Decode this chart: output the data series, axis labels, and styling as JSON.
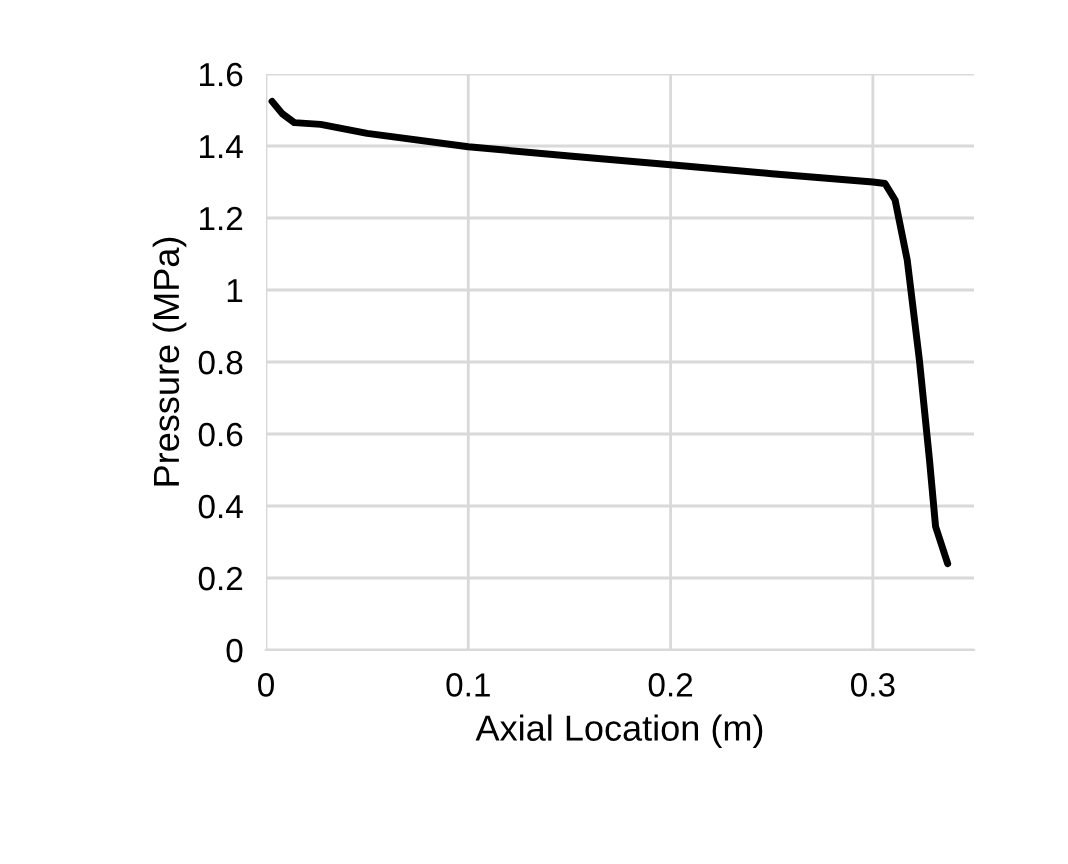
{
  "chart_data": {
    "type": "line",
    "xlabel": "Axial Location (m)",
    "ylabel": "Pressure (MPa)",
    "xlim": [
      0,
      0.35
    ],
    "xticks": [
      0,
      0.1,
      0.2,
      0.3
    ],
    "ylim": [
      0,
      1.6
    ],
    "yticks": [
      0,
      0.2,
      0.4,
      0.6,
      0.8,
      1,
      1.2,
      1.4,
      1.6
    ],
    "grid": true,
    "marker": "none",
    "line_style": "solid",
    "series": [
      {
        "color": "#000000",
        "x": [
          0.003,
          0.008,
          0.014,
          0.027,
          0.05,
          0.1,
          0.15,
          0.2,
          0.25,
          0.3,
          0.306,
          0.311,
          0.317,
          0.323,
          0.328,
          0.331,
          0.337
        ],
        "values": [
          1.524,
          1.49,
          1.465,
          1.46,
          1.435,
          1.398,
          1.372,
          1.348,
          1.323,
          1.3,
          1.296,
          1.25,
          1.083,
          0.806,
          0.528,
          0.343,
          0.24
        ]
      }
    ]
  }
}
